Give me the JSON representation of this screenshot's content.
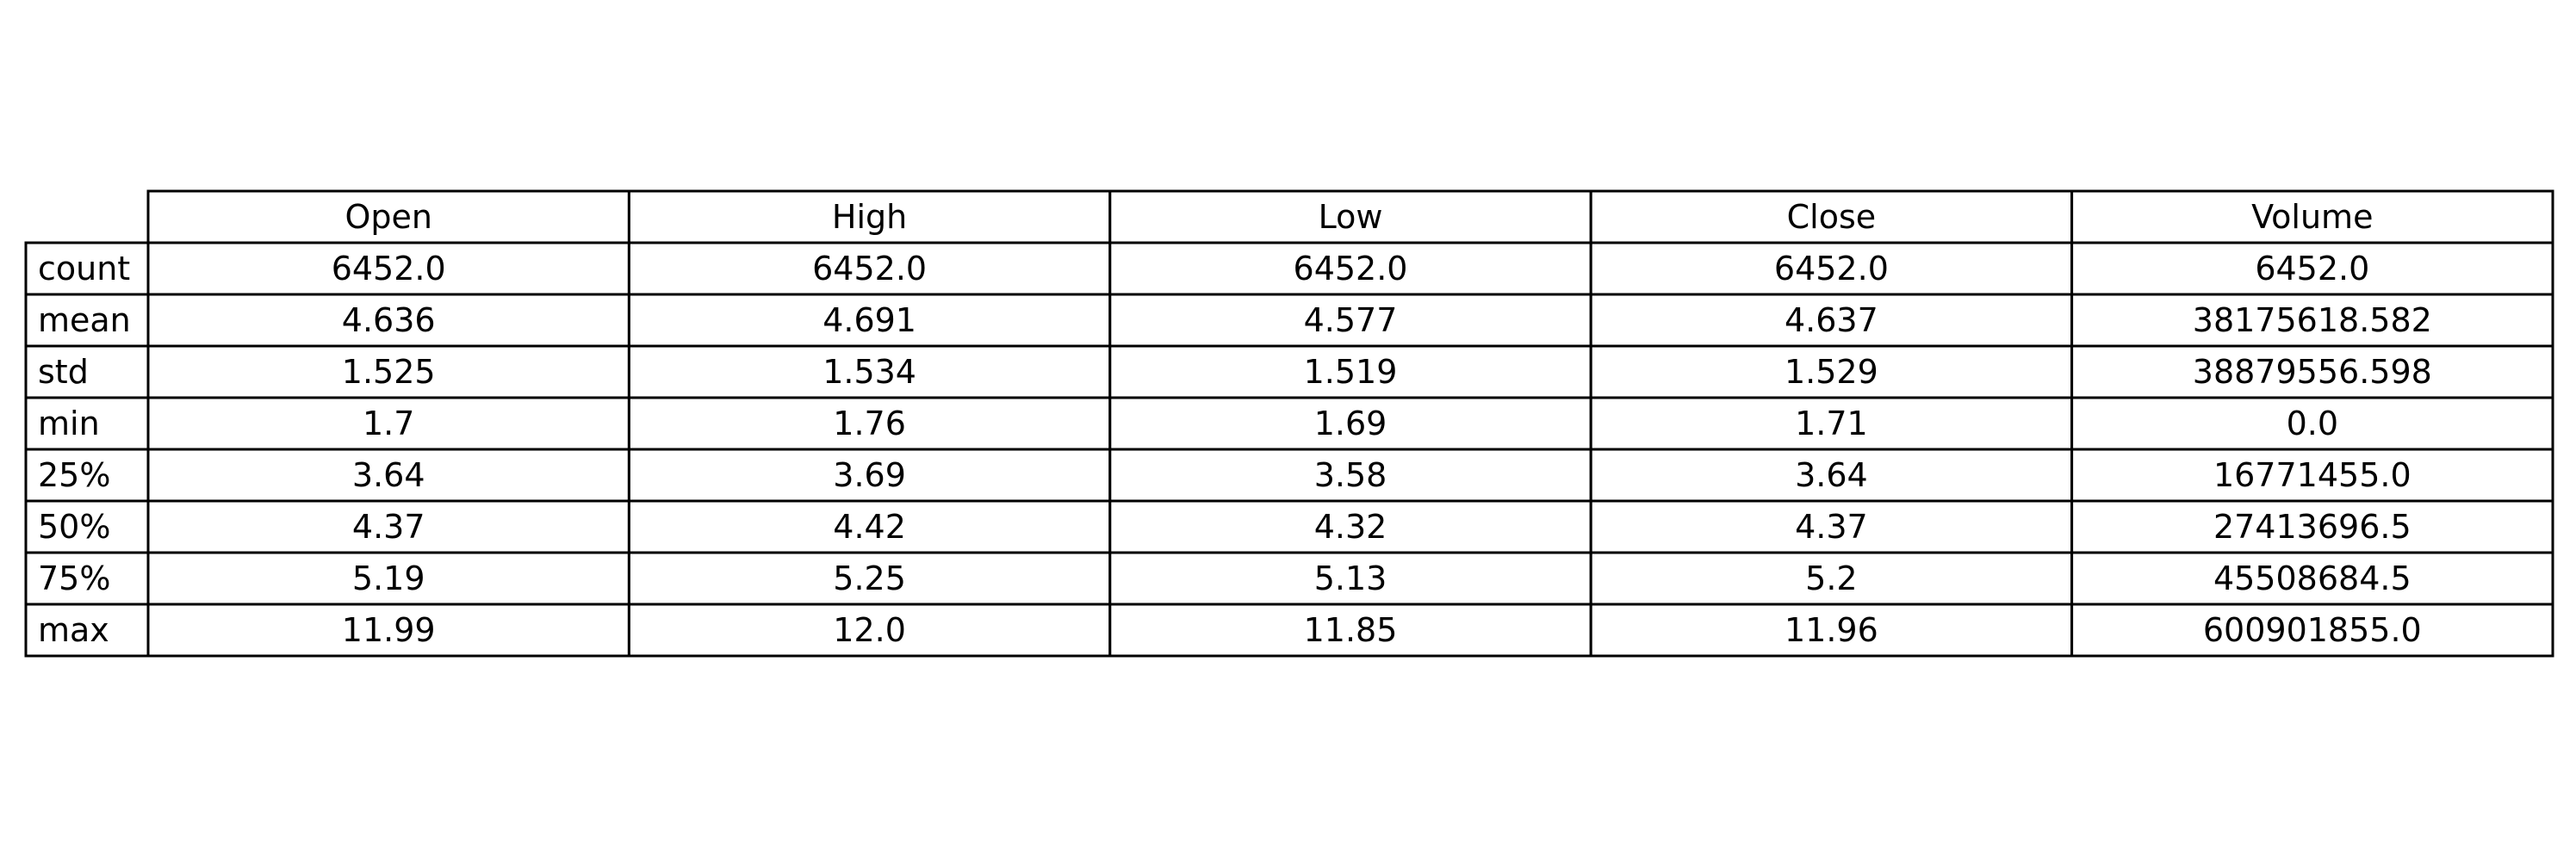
{
  "chart_data": {
    "type": "table",
    "columns": [
      "Open",
      "High",
      "Low",
      "Close",
      "Volume"
    ],
    "rows": [
      {
        "label": "count",
        "values": [
          "6452.0",
          "6452.0",
          "6452.0",
          "6452.0",
          "6452.0"
        ]
      },
      {
        "label": "mean",
        "values": [
          "4.636",
          "4.691",
          "4.577",
          "4.637",
          "38175618.582"
        ]
      },
      {
        "label": "std",
        "values": [
          "1.525",
          "1.534",
          "1.519",
          "1.529",
          "38879556.598"
        ]
      },
      {
        "label": "min",
        "values": [
          "1.7",
          "1.76",
          "1.69",
          "1.71",
          "0.0"
        ]
      },
      {
        "label": "25%",
        "values": [
          "3.64",
          "3.69",
          "3.58",
          "3.64",
          "16771455.0"
        ]
      },
      {
        "label": "50%",
        "values": [
          "4.37",
          "4.42",
          "4.32",
          "4.37",
          "27413696.5"
        ]
      },
      {
        "label": "75%",
        "values": [
          "5.19",
          "5.25",
          "5.13",
          "5.2",
          "45508684.5"
        ]
      },
      {
        "label": "max",
        "values": [
          "11.99",
          "12.0",
          "11.85",
          "11.96",
          "600901855.0"
        ]
      }
    ]
  }
}
